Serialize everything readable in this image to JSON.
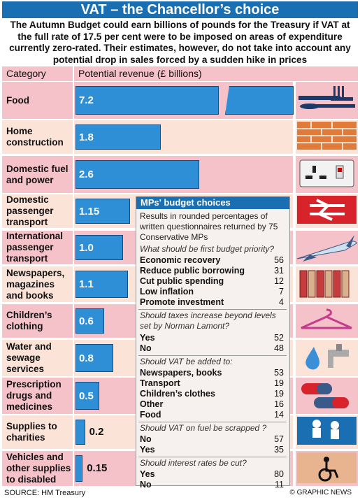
{
  "title": "VAT – the Chancellor’s choice",
  "intro": "The Autumn Budget could earn billions of pounds for the Treasury if VAT at the full rate of 17.5 per cent were to be imposed on areas of expenditure currently zero-rated. Their estimates, however, do not take into account any potential drop in sales forced by a sudden hike in prices",
  "header": {
    "category": "Category",
    "revenue": "Potential revenue  (£ billions)"
  },
  "colors": {
    "bar": "#2f8fd6",
    "title_bg": "#1a6fb3",
    "row_pink": "#f4c2c8",
    "row_peach": "#fbe3d8"
  },
  "chart_data": {
    "type": "bar",
    "title": "VAT – the Chancellor’s choice",
    "ylabel": "Potential revenue  (£ billions)",
    "categories": [
      "Food",
      "Home construction",
      "Domestic fuel and power",
      "Domestic passenger transport",
      "International passenger transport",
      "Newspapers, magazines and books",
      "Children’s clothing",
      "Water and sewage services",
      "Prescription drugs and medicines",
      "Supplies to charities",
      "Vehicles and other supplies to disabled"
    ],
    "values": [
      7.2,
      1.8,
      2.6,
      1.15,
      1.0,
      1.1,
      0.6,
      0.8,
      0.5,
      0.2,
      0.15
    ],
    "value_labels": [
      "7.2",
      "1.8",
      "2.6",
      "1.15",
      "1.0",
      "1.1",
      "0.6",
      "0.8",
      "0.5",
      "0.2",
      "0.15"
    ],
    "category_lines": [
      [
        "Food"
      ],
      [
        "Home",
        "construction"
      ],
      [
        "Domestic fuel",
        "and power"
      ],
      [
        "Domestic",
        "passenger",
        "transport"
      ],
      [
        "International",
        "passenger",
        "transport"
      ],
      [
        "Newspapers,",
        "magazines",
        "and books"
      ],
      [
        "Children’s",
        "clothing"
      ],
      [
        "Water and",
        "sewage",
        "services"
      ],
      [
        "Prescription",
        "drugs and",
        "medicines"
      ],
      [
        "Supplies to",
        "charities"
      ],
      [
        "Vehicles and",
        "other supplies",
        "to disabled"
      ]
    ],
    "icons": [
      "cutlery-icon",
      "brick-wall-icon",
      "power-socket-icon",
      "british-rail-icon",
      "airplane-icon",
      "books-icon",
      "clothes-hanger-icon",
      "water-tap-icon",
      "pills-icon",
      "children-icon",
      "wheelchair-icon"
    ],
    "axis_broken": true
  },
  "panel": {
    "title": "MPs' budget choices",
    "note": "Results in rounded percentages of written questionnaires returned by 75 Conservative MPs",
    "sections": [
      {
        "question": "What should be first budget priority?",
        "answers": [
          {
            "label": "Economic recovery",
            "value": "56"
          },
          {
            "label": "Reduce public borrowing",
            "value": "31"
          },
          {
            "label": "Cut public spending",
            "value": "12"
          },
          {
            "label": "Low inflation",
            "value": "7"
          },
          {
            "label": "Promote investment",
            "value": "4"
          }
        ]
      },
      {
        "question": "Should taxes increase beyond levels set by Norman Lamont?",
        "answers": [
          {
            "label": "Yes",
            "value": "52"
          },
          {
            "label": "No",
            "value": "48"
          }
        ]
      },
      {
        "question": "Should VAT be added to:",
        "answers": [
          {
            "label": "Newspapers, books",
            "value": "53"
          },
          {
            "label": "Transport",
            "value": "19"
          },
          {
            "label": "Children’s clothes",
            "value": "19"
          },
          {
            "label": "Other",
            "value": "16"
          },
          {
            "label": "Food",
            "value": "14"
          }
        ]
      },
      {
        "question": "Should VAT on fuel be scrapped ?",
        "answers": [
          {
            "label": "No",
            "value": "57"
          },
          {
            "label": "Yes",
            "value": "35"
          }
        ]
      },
      {
        "question": "Should interest rates be cut?",
        "answers": [
          {
            "label": "Yes",
            "value": "80"
          },
          {
            "label": "No",
            "value": "11"
          }
        ]
      }
    ]
  },
  "source": "SOURCE: HM Treasury",
  "credit": "© GRAPHIC NEWS",
  "watermark": "GRAPHIC NEWS"
}
